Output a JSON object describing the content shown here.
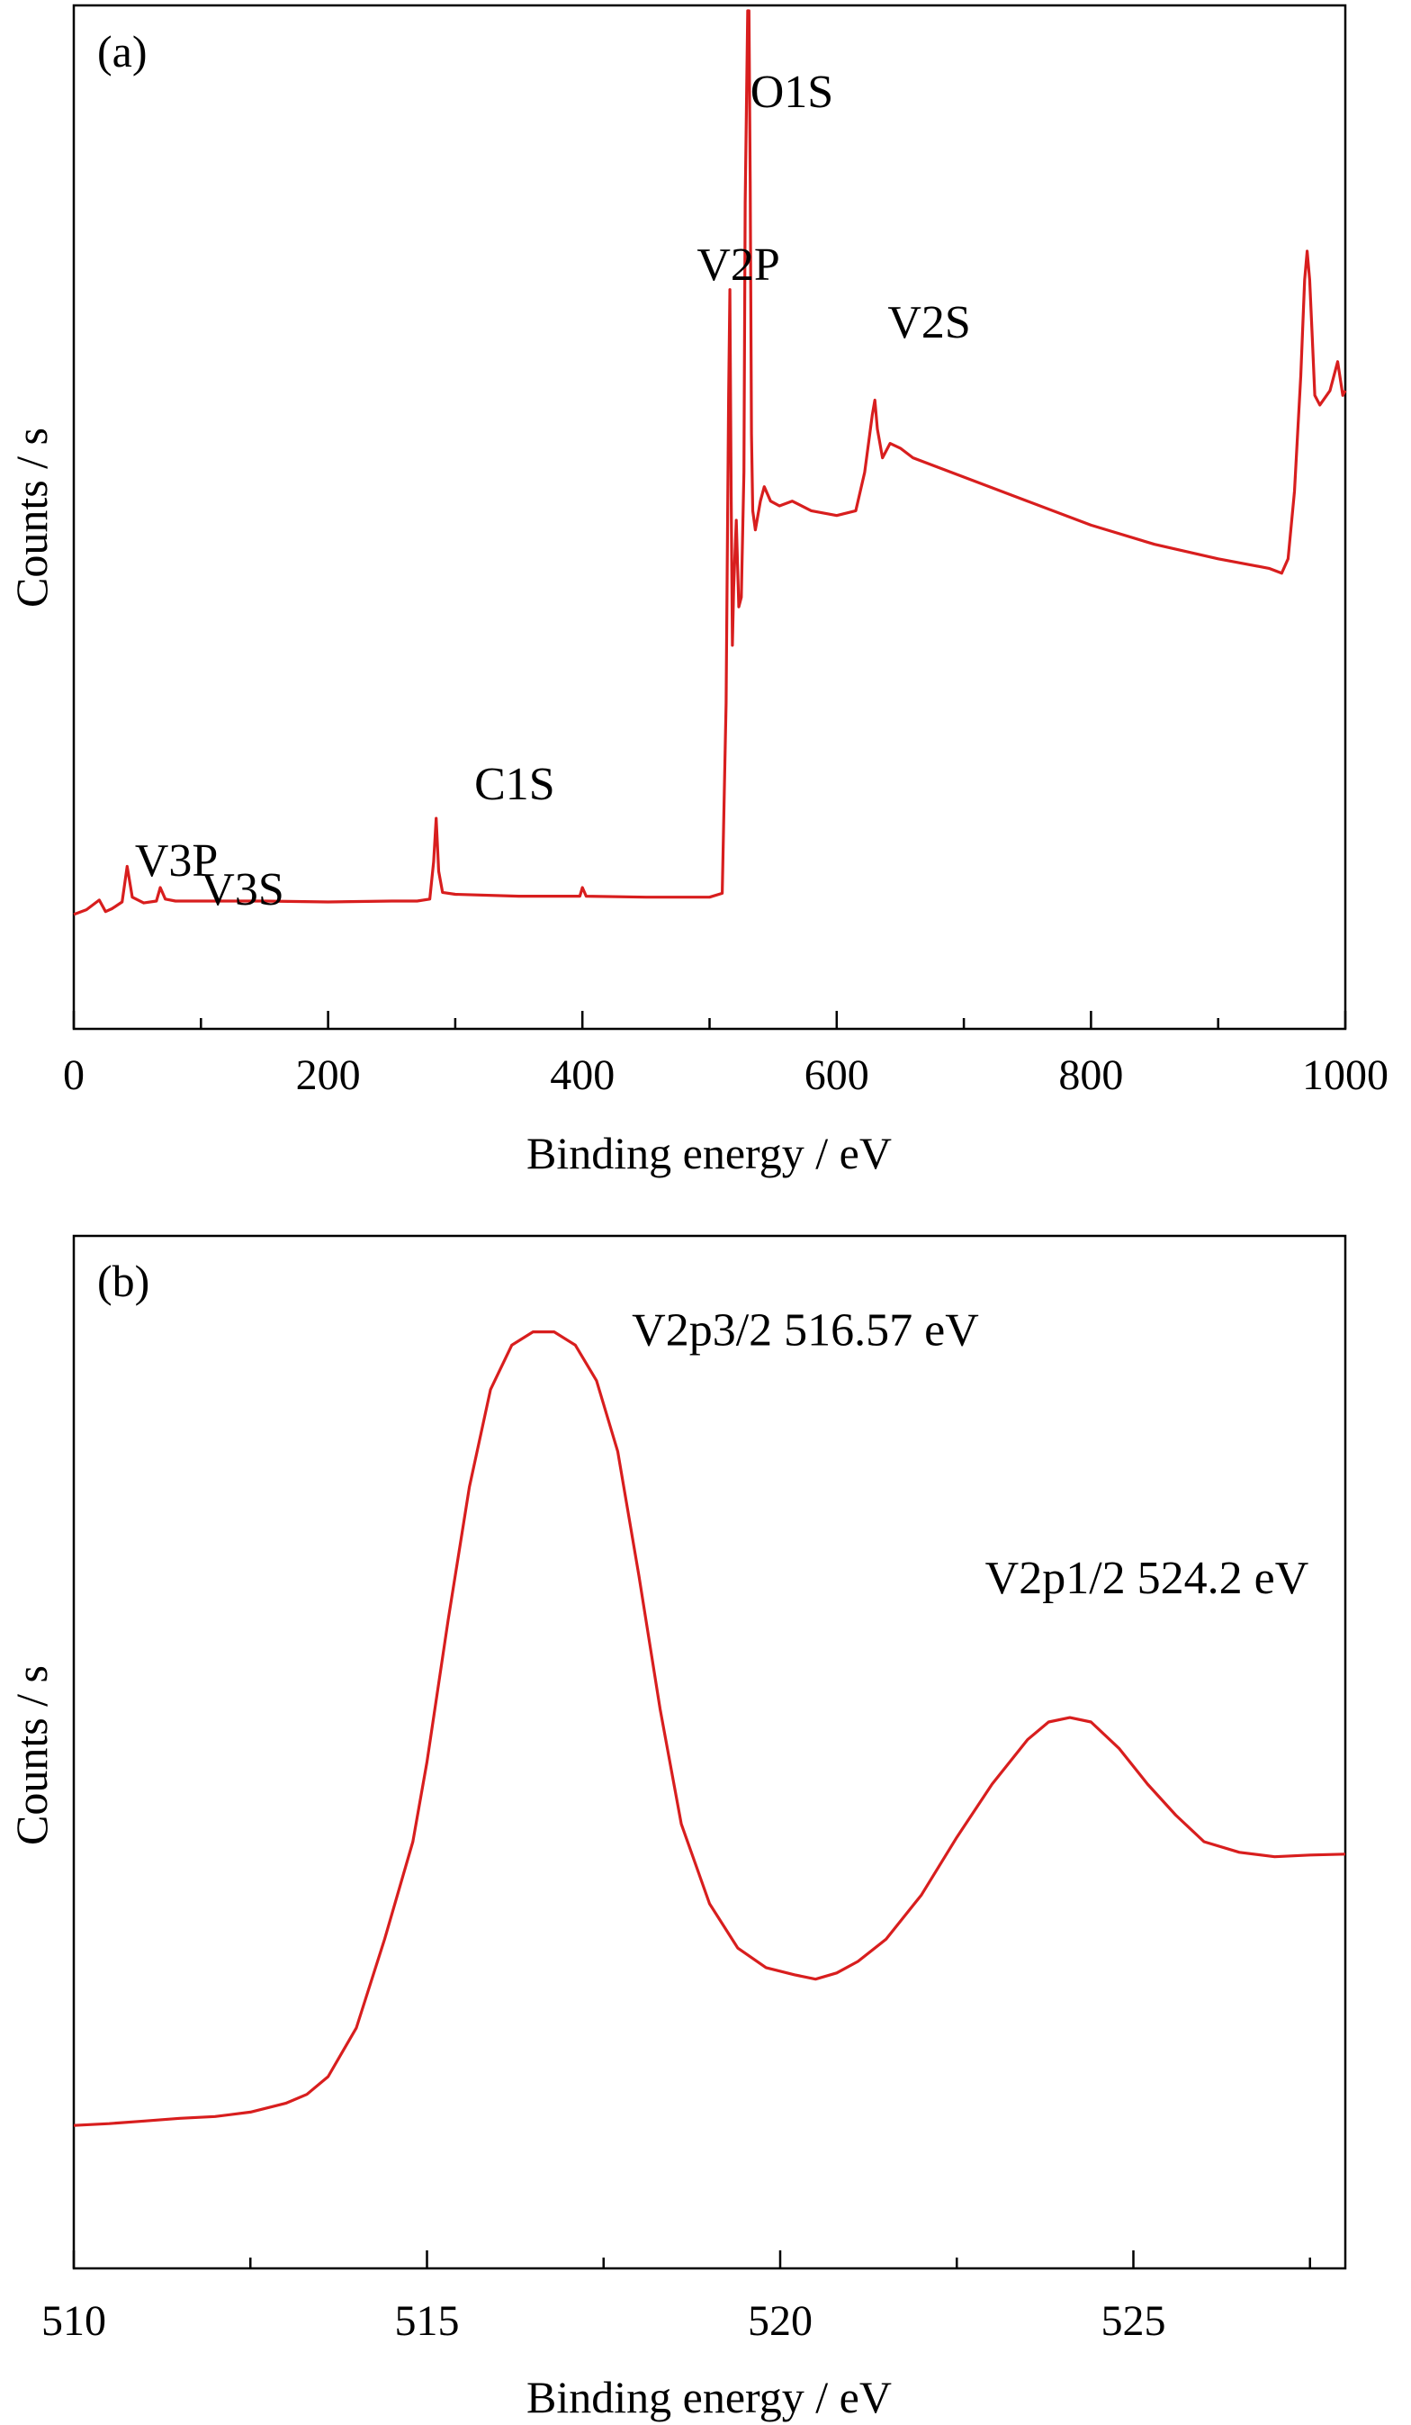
{
  "chart_data": [
    {
      "panel": "(a)",
      "type": "line",
      "xlabel": "Binding energy / eV",
      "ylabel": "Counts / s",
      "xlim": [
        0,
        1000
      ],
      "ylim": [
        0,
        100
      ],
      "x_ticks": [
        0,
        200,
        400,
        600,
        800,
        1000
      ],
      "x_minor_step": 100,
      "y_ticks_labeled": false,
      "grid": false,
      "series": [
        {
          "color": "#d81e1e",
          "x": [
            0,
            10,
            20,
            25,
            30,
            38,
            42,
            46,
            55,
            65,
            68,
            72,
            80,
            100,
            150,
            200,
            250,
            270,
            280,
            283,
            285,
            287,
            290,
            300,
            350,
            398,
            400,
            403,
            450,
            500,
            510,
            513,
            515,
            516,
            517,
            518,
            519,
            521,
            523,
            525,
            527,
            528,
            529,
            530,
            531,
            532,
            533,
            534,
            536,
            540,
            543,
            548,
            555,
            565,
            580,
            600,
            615,
            622,
            628,
            630,
            632,
            636,
            642,
            650,
            660,
            700,
            750,
            800,
            850,
            900,
            940,
            950,
            955,
            960,
            965,
            968,
            970,
            972,
            974,
            976,
            980,
            988,
            994,
            998,
            1000
          ],
          "y": [
            6.0,
            6.5,
            7.5,
            6.3,
            6.6,
            7.3,
            11.0,
            7.8,
            7.2,
            7.4,
            8.8,
            7.6,
            7.4,
            7.4,
            7.4,
            7.3,
            7.4,
            7.4,
            7.6,
            11.5,
            16.0,
            10.5,
            8.3,
            8.1,
            7.9,
            7.9,
            8.8,
            7.9,
            7.8,
            7.8,
            8.2,
            28.0,
            60.0,
            71.0,
            50.0,
            34.0,
            40.0,
            47.0,
            38.0,
            39.0,
            52.0,
            80.0,
            90.0,
            100.0,
            100.0,
            82.0,
            56.0,
            48.0,
            46.0,
            49.0,
            50.5,
            49.0,
            48.5,
            49.0,
            48.0,
            47.5,
            48.0,
            52.0,
            58.0,
            59.5,
            56.5,
            53.5,
            55.0,
            54.5,
            53.5,
            51.5,
            49.0,
            46.5,
            44.5,
            43.0,
            42.0,
            41.5,
            43.0,
            50.0,
            62.0,
            72.0,
            75.0,
            72.0,
            66.0,
            60.0,
            59.0,
            60.5,
            63.5,
            60.0,
            60.5
          ]
        }
      ],
      "annotations": [
        {
          "text": "O1S",
          "x": 532,
          "y": 90
        },
        {
          "text": "V2P",
          "x": 490,
          "y": 72
        },
        {
          "text": "V2S",
          "x": 640,
          "y": 66
        },
        {
          "text": "C1S",
          "x": 315,
          "y": 18
        },
        {
          "text": "V3P",
          "x": 48,
          "y": 10
        },
        {
          "text": "V3S",
          "x": 100,
          "y": 7
        }
      ]
    },
    {
      "panel": "(b)",
      "type": "line",
      "xlabel": "Binding energy / eV",
      "ylabel": "Counts / s",
      "xlim": [
        510,
        528
      ],
      "ylim": [
        0,
        100
      ],
      "x_ticks": [
        510,
        515,
        520,
        525
      ],
      "x_minor_step": 2.5,
      "y_ticks_labeled": false,
      "grid": false,
      "series": [
        {
          "color": "#d81e1e",
          "x": [
            510,
            510.5,
            511,
            511.5,
            512,
            512.5,
            513,
            513.3,
            513.6,
            514,
            514.4,
            514.8,
            515,
            515.3,
            515.6,
            515.9,
            516.2,
            516.5,
            516.8,
            517.1,
            517.4,
            517.7,
            518,
            518.3,
            518.6,
            519,
            519.4,
            519.8,
            520.2,
            520.5,
            520.8,
            521.1,
            521.5,
            522,
            522.5,
            523,
            523.5,
            523.8,
            524.1,
            524.4,
            524.8,
            525.2,
            525.6,
            526,
            526.5,
            527,
            527.5,
            528
          ],
          "y": [
            8,
            8.2,
            8.5,
            8.8,
            9.0,
            9.5,
            10.5,
            11.5,
            13.5,
            19,
            29,
            40,
            49,
            65,
            80,
            91,
            96,
            97.5,
            97.5,
            96,
            92,
            84,
            70,
            55,
            42,
            33,
            28,
            25.8,
            25.0,
            24.5,
            25.2,
            26.5,
            29,
            34,
            40.5,
            46.5,
            51.5,
            53.5,
            54.0,
            53.5,
            50.5,
            46.5,
            43,
            40,
            38.8,
            38.3,
            38.5,
            38.6
          ]
        }
      ],
      "annotations": [
        {
          "text": "V2p3/2 516.57 eV",
          "x": 517.9,
          "y": 96
        },
        {
          "text": "V2p1/2 524.2 eV",
          "x": 522.9,
          "y": 68
        }
      ]
    }
  ]
}
